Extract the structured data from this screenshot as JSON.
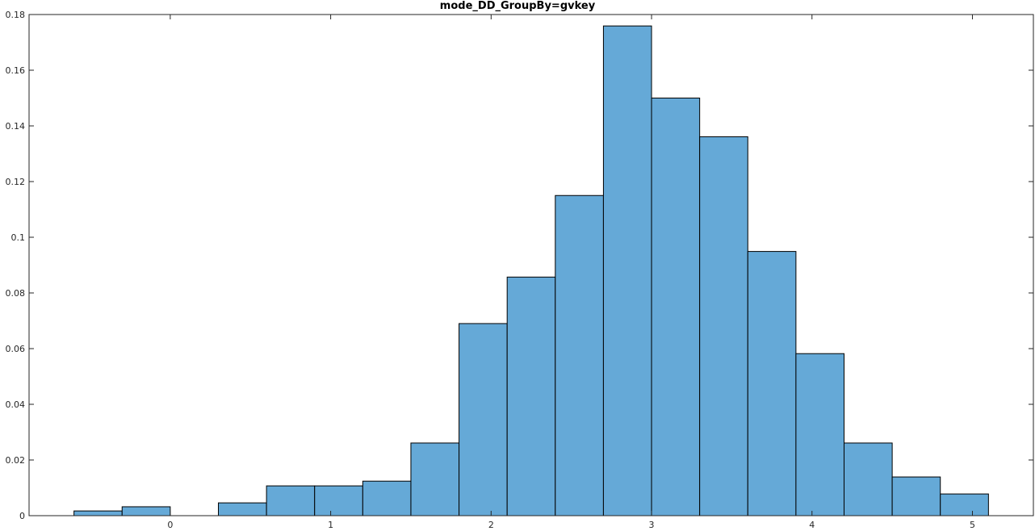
{
  "chart_data": {
    "type": "bar",
    "title": "mode_DD_GroupBy=gvkey",
    "xlabel": "",
    "ylabel": "",
    "xlim": [
      -0.88,
      5.38
    ],
    "ylim": [
      0,
      0.18
    ],
    "xticks": [
      0,
      1,
      2,
      3,
      4,
      5
    ],
    "xtick_labels": [
      "0",
      "1",
      "2",
      "3",
      "4",
      "5"
    ],
    "yticks": [
      0,
      0.02,
      0.04,
      0.06,
      0.08,
      0.1,
      0.12,
      0.14,
      0.16,
      0.18
    ],
    "ytick_labels": [
      "0",
      "0.02",
      "0.04",
      "0.06",
      "0.08",
      "0.1",
      "0.12",
      "0.14",
      "0.16",
      "0.18"
    ],
    "bin_width": 0.3,
    "bin_edges": [
      -0.6,
      -0.3,
      0.0,
      0.3,
      0.6,
      0.9,
      1.2,
      1.5,
      1.8,
      2.1,
      2.4,
      2.7,
      3.0,
      3.3,
      3.6,
      3.9,
      4.2,
      4.5,
      4.8,
      5.1
    ],
    "values": [
      0.0017,
      0.0032,
      0.0,
      0.0046,
      0.0107,
      0.0107,
      0.0124,
      0.0261,
      0.069,
      0.0857,
      0.115,
      0.1759,
      0.15,
      0.1361,
      0.0949,
      0.0582,
      0.0261,
      0.0139,
      0.0078
    ],
    "bar_color": "#65a9d7",
    "edge_color": "#000000",
    "grid": false,
    "box": true
  }
}
